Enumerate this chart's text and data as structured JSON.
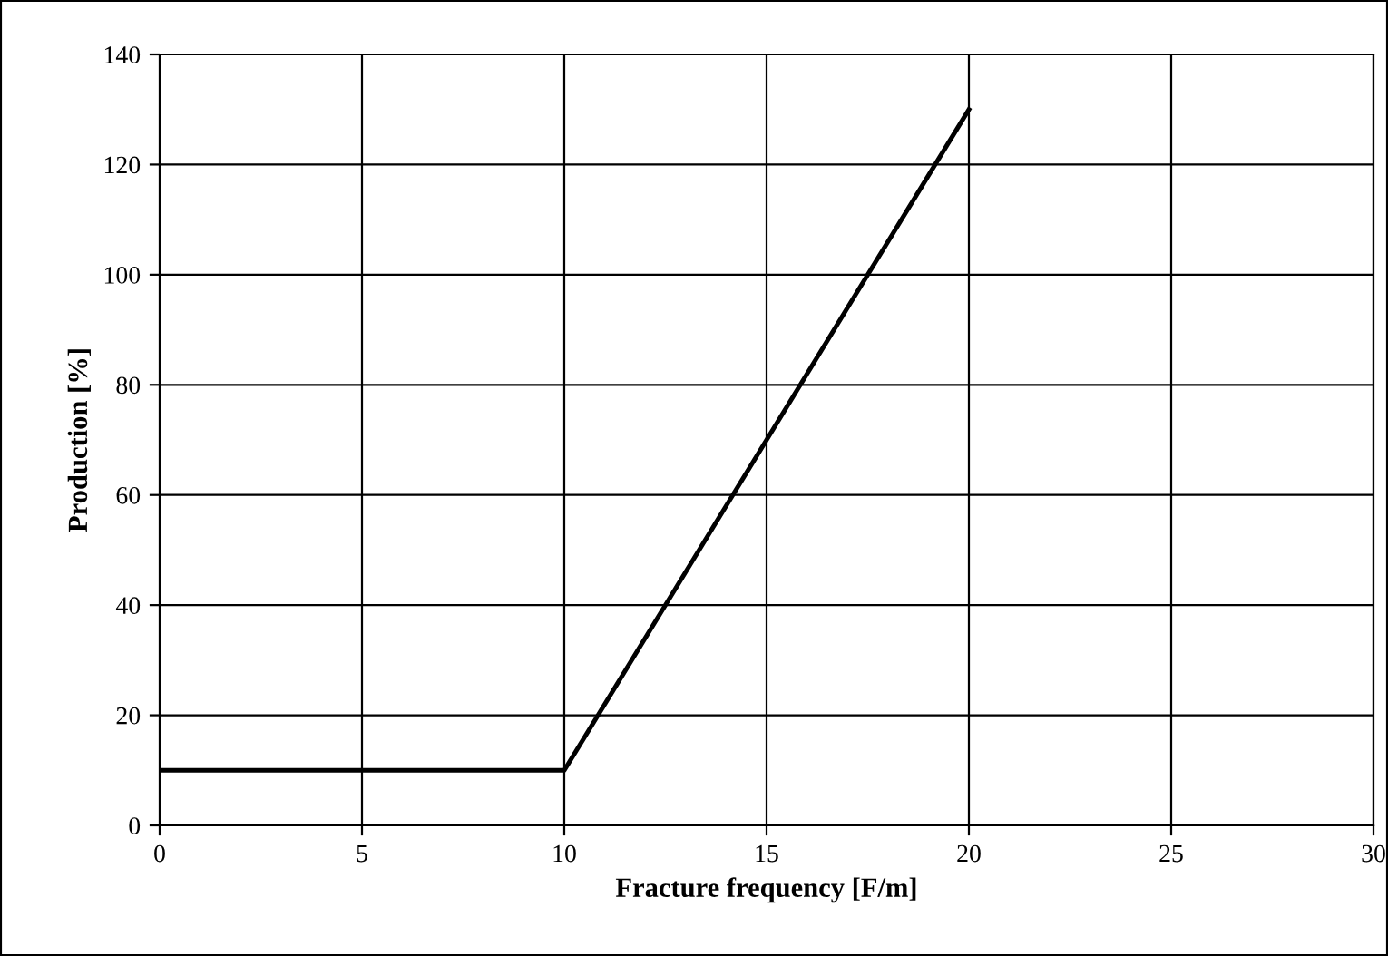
{
  "chart_data": {
    "type": "line",
    "xlabel": "Fracture frequency [F/m]",
    "ylabel": "Production [%]",
    "x": [
      0,
      10,
      20
    ],
    "series": [
      {
        "color": "#000000",
        "values": [
          10,
          10,
          130
        ]
      }
    ],
    "xlim": [
      0,
      30
    ],
    "xticks": [
      0,
      5,
      10,
      15,
      20,
      25,
      30
    ],
    "ylim": [
      0,
      140
    ],
    "yticks": [
      0,
      20,
      40,
      60,
      80,
      100,
      120,
      140
    ],
    "grid": true,
    "marker": "none",
    "line_style": "solid"
  }
}
